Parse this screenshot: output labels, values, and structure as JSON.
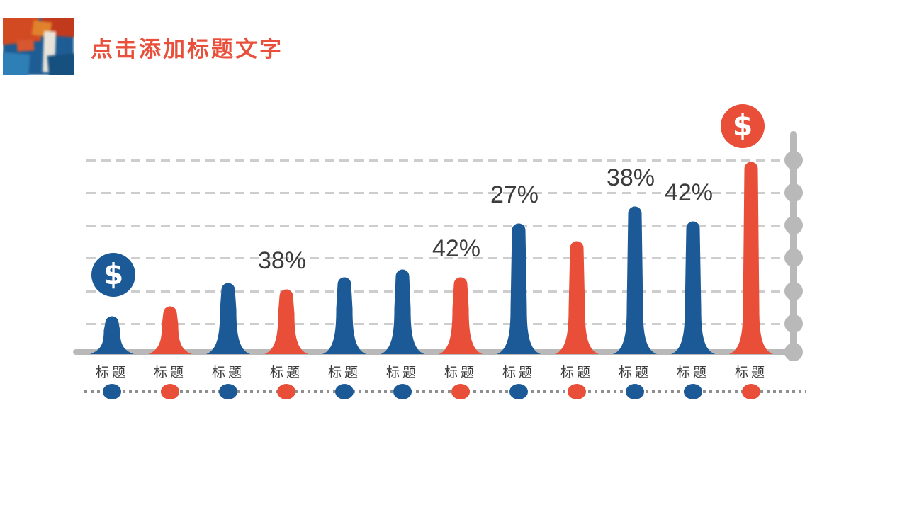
{
  "header": {
    "title": "点击添加标题文字",
    "title_color": "#e8503c"
  },
  "chart_data": {
    "type": "bar",
    "title": "",
    "xlabel": "",
    "ylabel": "",
    "categories": [
      "标题",
      "标题",
      "标题",
      "标题",
      "标题",
      "标题",
      "标题",
      "标题",
      "标题",
      "标题",
      "标题",
      "标题"
    ],
    "values": [
      20,
      25,
      37,
      34,
      40,
      44,
      40,
      68,
      59,
      77,
      69,
      100
    ],
    "ylim": [
      0,
      100
    ],
    "bar_colors": [
      "blue",
      "red",
      "blue",
      "red",
      "blue",
      "blue",
      "red",
      "blue",
      "red",
      "blue",
      "blue",
      "red"
    ],
    "annotations": [
      {
        "bar_index": 3,
        "text": "38%"
      },
      {
        "bar_index": 6,
        "text": "42%"
      },
      {
        "bar_index": 7,
        "text": "27%"
      },
      {
        "bar_index": 9,
        "text": "38%"
      },
      {
        "bar_index": 10,
        "text": "42%"
      }
    ],
    "badges": [
      {
        "bar_index": 0,
        "symbol": "$",
        "color": "blue"
      },
      {
        "bar_index": 11,
        "symbol": "$",
        "color": "red"
      }
    ],
    "palette": {
      "blue": "#1b5a96",
      "red": "#e84e38",
      "axis_gray": "#b9b9b9",
      "grid_gray": "#cdcdcd",
      "dotline_gray": "#8f8f8f",
      "label_text": "#3d3d3d"
    },
    "axis": {
      "side": "right",
      "gridlines": 6,
      "grid_style": "dashed"
    },
    "legend": null
  }
}
